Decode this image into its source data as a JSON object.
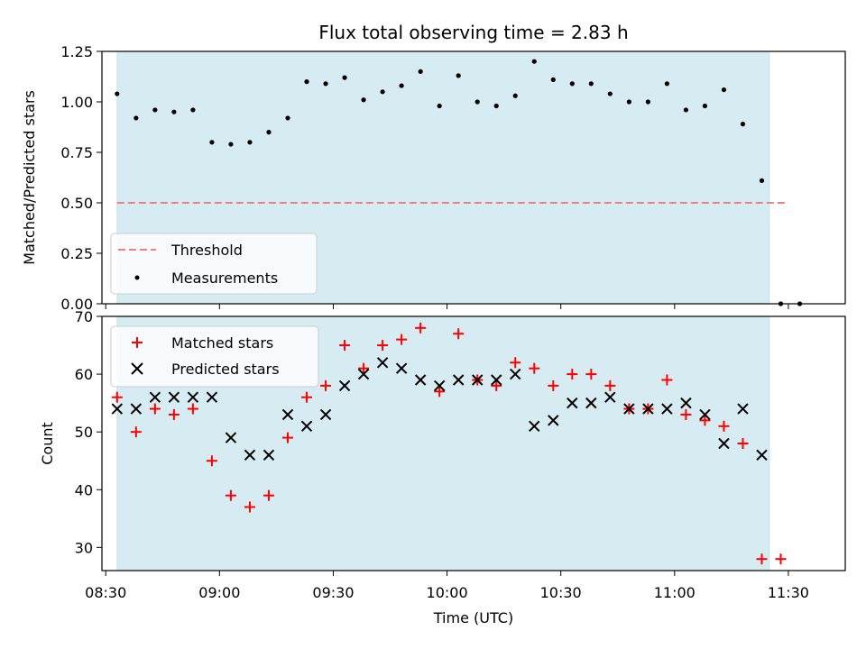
{
  "chart_data": {
    "title": "Flux total observing time = 2.83 h",
    "xlabel": "Time (UTC)",
    "x_ticks": [
      "08:30",
      "09:00",
      "09:30",
      "10:00",
      "10:30",
      "11:00",
      "11:30"
    ],
    "x_tick_values": [
      510,
      540,
      570,
      600,
      630,
      660,
      690
    ],
    "xlim": [
      509,
      705
    ],
    "observing_span": [
      513,
      685
    ],
    "span_color": "#add8e6",
    "times": [
      513,
      518,
      523,
      528,
      533,
      538,
      543,
      548,
      553,
      558,
      563,
      568,
      573,
      578,
      583,
      588,
      593,
      598,
      603,
      608,
      613,
      618,
      623,
      628,
      633,
      638,
      643,
      648,
      653,
      658,
      663,
      668,
      673,
      678,
      683
    ],
    "top": {
      "type": "scatter",
      "ylabel": "Matched/Predicted stars",
      "ylim": [
        0,
        1.25
      ],
      "y_ticks": [
        "0.00",
        "0.25",
        "0.50",
        "0.75",
        "1.00",
        "1.25"
      ],
      "y_tick_values": [
        0,
        0.25,
        0.5,
        0.75,
        1.0,
        1.25
      ],
      "threshold": {
        "name": "Threshold",
        "value": 0.5,
        "x_range": [
          513,
          690
        ],
        "color": "#f08080"
      },
      "measurements": {
        "name": "Measurements",
        "color": "#000000",
        "x": [
          513,
          518,
          523,
          528,
          533,
          538,
          543,
          548,
          553,
          558,
          563,
          568,
          573,
          578,
          583,
          588,
          593,
          598,
          603,
          608,
          613,
          618,
          623,
          628,
          633,
          638,
          643,
          648,
          653,
          658,
          663,
          668,
          673,
          678,
          683,
          688,
          693
        ],
        "y": [
          1.04,
          0.92,
          0.96,
          0.95,
          0.96,
          0.8,
          0.79,
          0.8,
          0.85,
          0.92,
          1.1,
          1.09,
          1.12,
          1.01,
          1.05,
          1.08,
          1.15,
          0.98,
          1.13,
          1.0,
          0.98,
          1.03,
          1.2,
          1.11,
          1.09,
          1.09,
          1.04,
          1.0,
          1.0,
          1.09,
          0.96,
          0.98,
          1.06,
          0.89,
          0.61,
          0.0,
          0.0
        ]
      },
      "legend": {
        "position": "lower-left",
        "labels": [
          "Threshold",
          "Measurements"
        ]
      }
    },
    "bottom": {
      "type": "scatter",
      "ylabel": "Count",
      "ylim": [
        26,
        70
      ],
      "y_ticks": [
        "30",
        "40",
        "50",
        "60",
        "70"
      ],
      "y_tick_values": [
        30,
        40,
        50,
        60,
        70
      ],
      "series": [
        {
          "name": "Matched stars",
          "marker": "plus",
          "color": "#ff0000",
          "x": [
            513,
            518,
            523,
            528,
            533,
            538,
            543,
            548,
            553,
            558,
            563,
            568,
            573,
            578,
            583,
            588,
            593,
            598,
            603,
            608,
            613,
            618,
            623,
            628,
            633,
            638,
            643,
            648,
            653,
            658,
            663,
            668,
            673,
            678,
            683,
            688
          ],
          "values": [
            56,
            50,
            54,
            53,
            54,
            45,
            39,
            37,
            39,
            49,
            56,
            58,
            65,
            61,
            65,
            66,
            68,
            57,
            67,
            59,
            58,
            62,
            61,
            58,
            60,
            60,
            58,
            54,
            54,
            59,
            53,
            52,
            51,
            48,
            28,
            28
          ]
        },
        {
          "name": "Predicted stars",
          "marker": "x",
          "color": "#000000",
          "x": [
            513,
            518,
            523,
            528,
            533,
            538,
            543,
            548,
            553,
            558,
            563,
            568,
            573,
            578,
            583,
            588,
            593,
            598,
            603,
            608,
            613,
            618,
            623,
            628,
            633,
            638,
            643,
            648,
            653,
            658,
            663,
            668,
            673,
            678,
            683
          ],
          "values": [
            54,
            54,
            56,
            56,
            56,
            56,
            49,
            46,
            46,
            53,
            51,
            53,
            58,
            60,
            62,
            61,
            59,
            58,
            59,
            59,
            59,
            60,
            51,
            52,
            55,
            55,
            56,
            54,
            54,
            54,
            55,
            53,
            48,
            54,
            46
          ]
        }
      ],
      "legend": {
        "position": "upper-left",
        "labels": [
          "Matched stars",
          "Predicted stars"
        ]
      }
    }
  }
}
